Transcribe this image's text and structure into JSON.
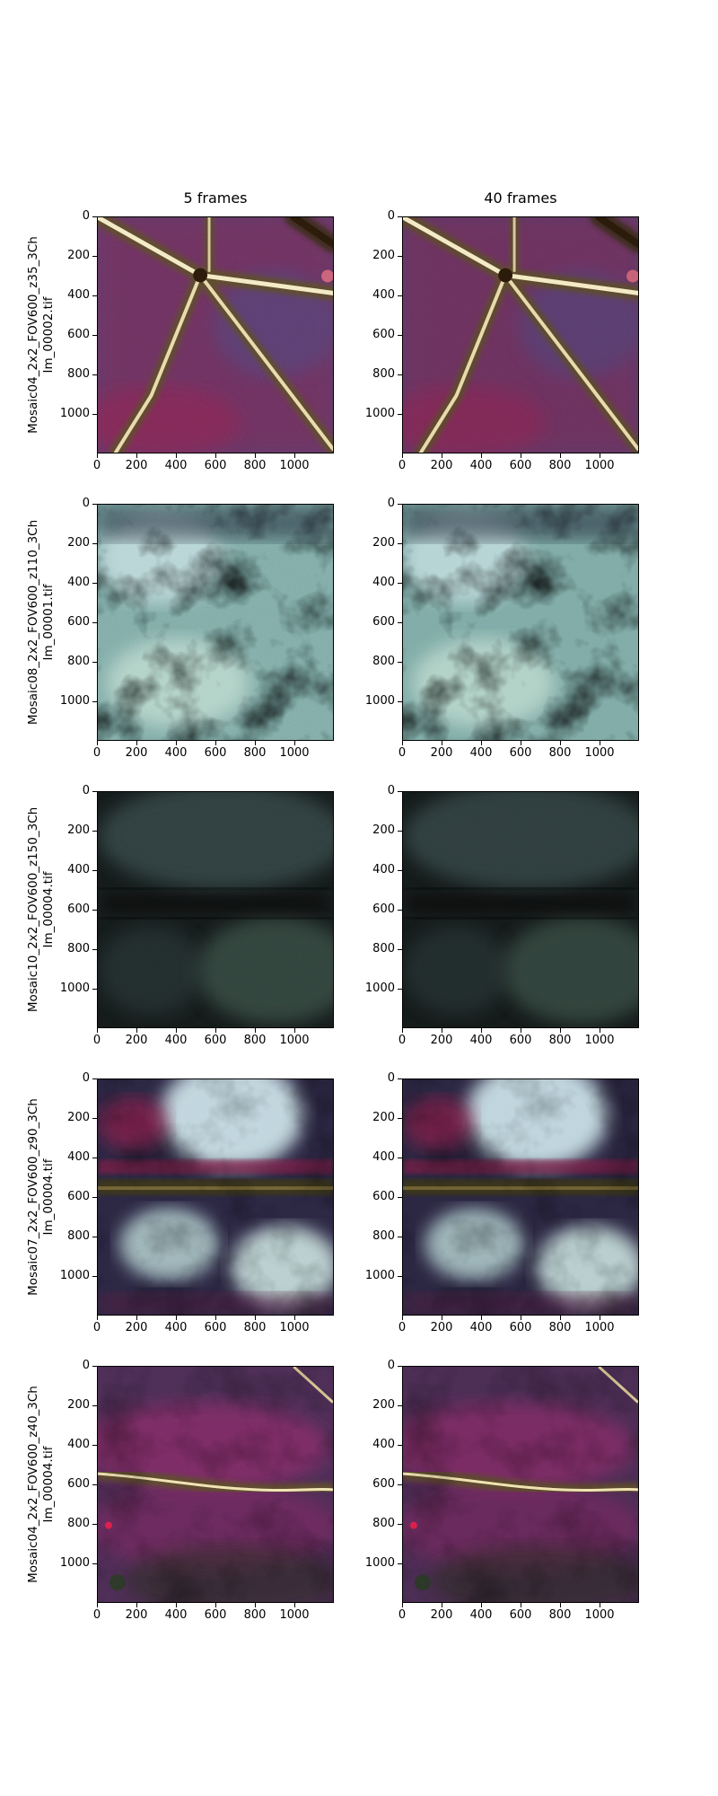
{
  "columns": [
    {
      "title": "5 frames"
    },
    {
      "title": "40 frames"
    }
  ],
  "rows": [
    {
      "label_line1": "Mosaic04_2x2_FOV600_z35_3Ch",
      "label_line2": "Im_00002.tif",
      "scene": "vessels"
    },
    {
      "label_line1": "Mosaic08_2x2_FOV600_z110_3Ch",
      "label_line2": "Im_00001.tif",
      "scene": "cyan-tissue"
    },
    {
      "label_line1": "Mosaic10_2x2_FOV600_z150_3Ch",
      "label_line2": "Im_00004.tif",
      "scene": "dark"
    },
    {
      "label_line1": "Mosaic07_2x2_FOV600_z90_3Ch",
      "label_line2": "Im_00004.tif",
      "scene": "blobs"
    },
    {
      "label_line1": "Mosaic04_2x2_FOV600_z40_3Ch",
      "label_line2": "Im_00004.tif",
      "scene": "magenta-band"
    }
  ],
  "axes": {
    "xticks": [
      "0",
      "200",
      "400",
      "600",
      "800",
      "1000"
    ],
    "yticks": [
      "0",
      "200",
      "400",
      "600",
      "800",
      "1000"
    ],
    "xlim": [
      0,
      1200
    ],
    "ylim": [
      1200,
      0
    ]
  },
  "colors": {
    "magenta_tissue": "#6b3a6e",
    "vessel_highlight": "#f3e9c4",
    "cyan_tissue": "#9fc7c2",
    "dark_tissue": "#1b2322",
    "red_accent": "#c2264e"
  }
}
